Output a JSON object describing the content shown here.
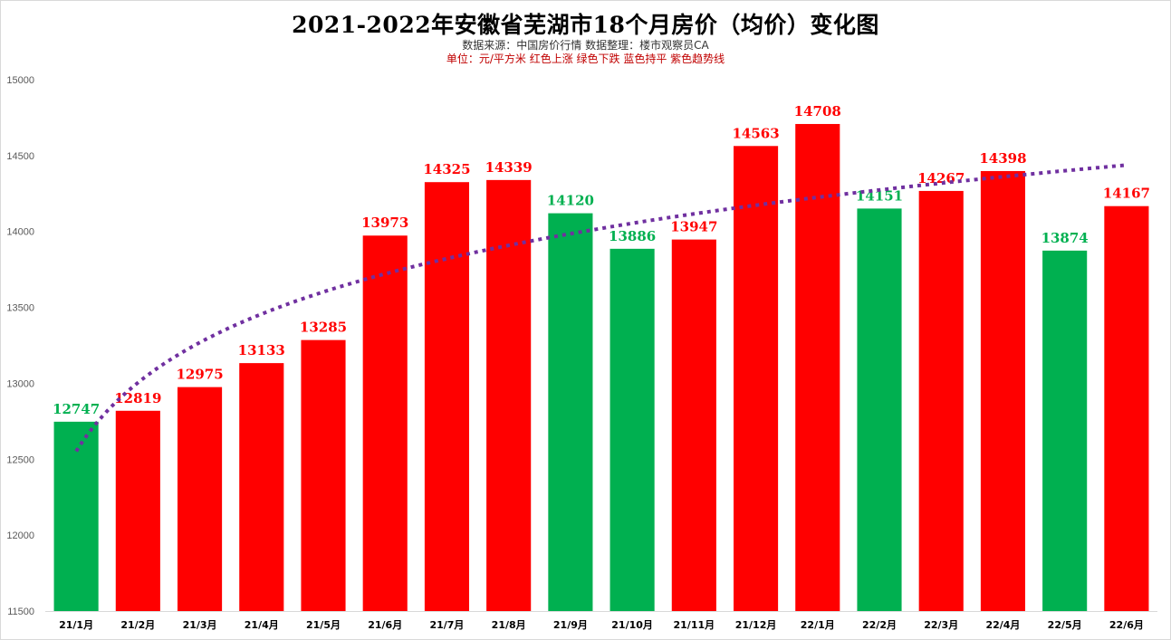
{
  "title": "2021-2022年安徽省芜湖市18个月房价（均价）变化图",
  "subtitle": "数据来源：中国房价行情    数据整理：楼市观察员CA",
  "legend_note": "单位：元/平方米   红色上涨   绿色下跌   蓝色持平  紫色趋势线",
  "colors": {
    "up": "#ff0000",
    "down": "#00b050",
    "trend": "#7030a0",
    "label_up": "#ff0000",
    "label_down": "#00b050"
  },
  "chart_data": {
    "type": "bar",
    "categories": [
      "21/1月",
      "21/2月",
      "21/3月",
      "21/4月",
      "21/5月",
      "21/6月",
      "21/7月",
      "21/8月",
      "21/9月",
      "21/10月",
      "21/11月",
      "21/12月",
      "22/1月",
      "22/2月",
      "22/3月",
      "22/4月",
      "22/5月",
      "22/6月"
    ],
    "values": [
      12747,
      12819,
      12975,
      13133,
      13285,
      13973,
      14325,
      14339,
      14120,
      13886,
      13947,
      14563,
      14708,
      14151,
      14267,
      14398,
      13874,
      14167
    ],
    "direction": [
      "down",
      "up",
      "up",
      "up",
      "up",
      "up",
      "up",
      "up",
      "down",
      "down",
      "up",
      "up",
      "up",
      "down",
      "up",
      "up",
      "down",
      "up"
    ],
    "ylim": [
      11500,
      15000
    ],
    "yticks": [
      11500,
      12000,
      12500,
      13000,
      13500,
      14000,
      14500,
      15000
    ],
    "trendline": {
      "type": "logarithmic",
      "style": "dotted"
    },
    "grid": false,
    "xlabel": "",
    "ylabel": ""
  }
}
